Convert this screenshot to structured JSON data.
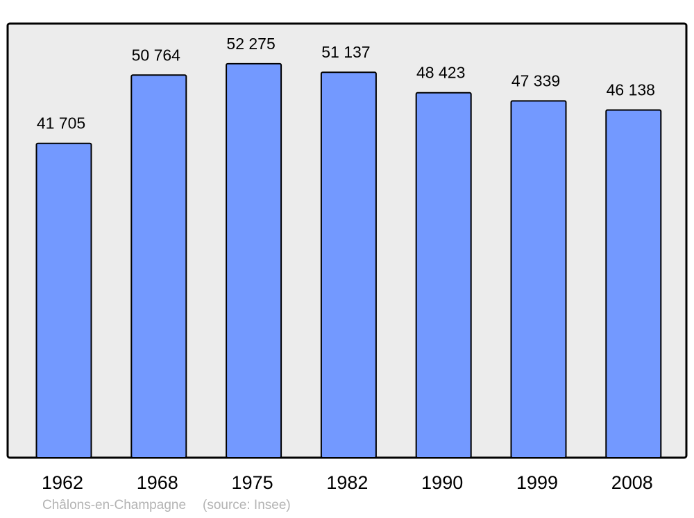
{
  "chart_data": {
    "type": "bar",
    "categories": [
      "1962",
      "1968",
      "1975",
      "1982",
      "1990",
      "1999",
      "2008"
    ],
    "values": [
      41705,
      50764,
      52275,
      51137,
      48423,
      47339,
      46138
    ],
    "data_labels": [
      "41 705",
      "50 764",
      "52 275",
      "51 137",
      "48 423",
      "47 339",
      "46 138"
    ],
    "title": "",
    "xlabel": "",
    "ylabel": "",
    "ylim": [
      0,
      57600
    ],
    "grid": false,
    "colors": {
      "bar": "#7399ff",
      "background": "#ececec",
      "border": "#000000",
      "caption": "#b3b3b3"
    }
  },
  "caption": {
    "place": "Châlons-en-Champagne",
    "source": "(source: Insee)"
  }
}
